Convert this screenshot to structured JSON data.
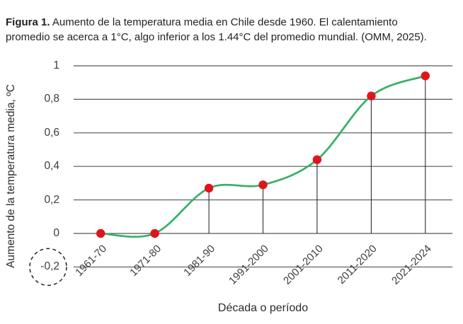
{
  "caption": {
    "label": "Figura 1.",
    "line1": " Aumento de la temperatura media en Chile desde 1960. El calentamiento",
    "line2": "promedio se acerca a 1°C, algo inferior a los 1.44°C del promedio mundial. (OMM, 2025)."
  },
  "chart_data": {
    "type": "line",
    "categories": [
      "1961-70",
      "1971-80",
      "1981-90",
      "1991-2000",
      "2001-2010",
      "2011-2020",
      "2021-2024"
    ],
    "values": [
      0,
      0,
      0.27,
      0.29,
      0.44,
      0.82,
      0.94
    ],
    "xlabel": "Década o período",
    "ylabel": "Aumento de la temperatura media, ºC",
    "ylim": [
      -0.2,
      1.0
    ],
    "y_ticks": [
      1,
      0.8,
      0.6,
      0.4,
      0.2,
      0,
      -0.2
    ],
    "y_tick_labels": [
      "1",
      "0,8",
      "0,6",
      "0,4",
      "0,2",
      "0",
      "-0,2"
    ],
    "grid": true,
    "legend": false,
    "smooth_line": true,
    "drop_lines_to_zero": true,
    "circled_y_tick": "-0,2",
    "colors": {
      "line": "#3bb06c",
      "marker": "#e0151c",
      "grid": "#565656",
      "drop_line": "#2e2e2e",
      "dashed_circle": "#222222"
    }
  }
}
